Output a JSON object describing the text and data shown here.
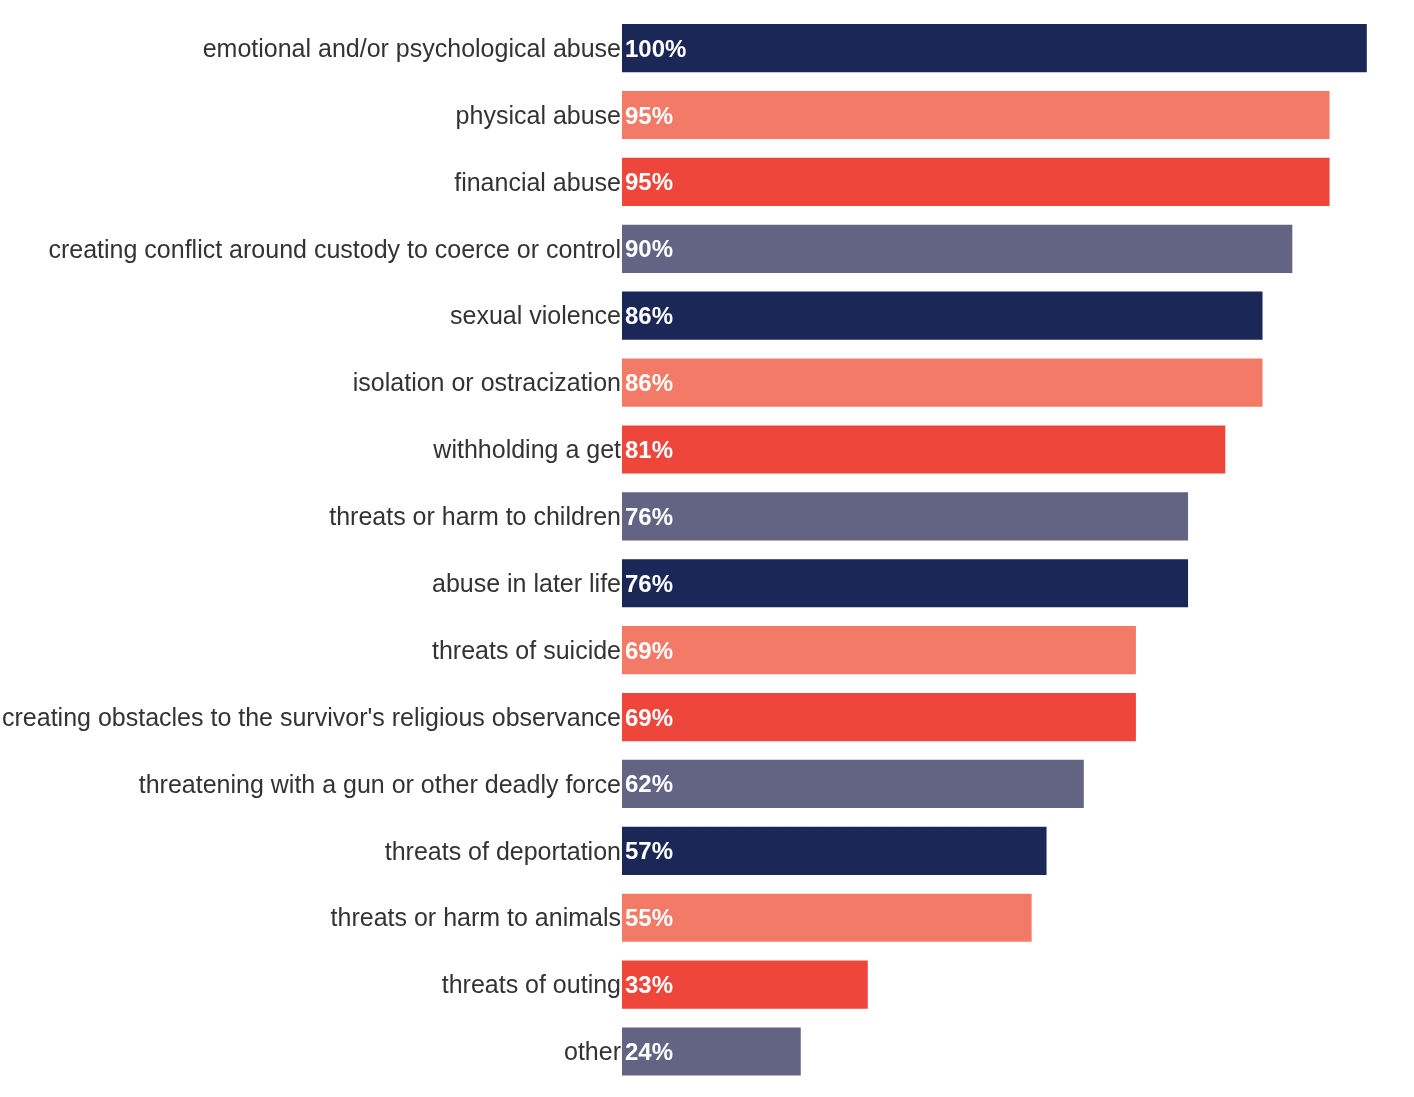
{
  "chart_data": {
    "type": "bar",
    "orientation": "horizontal",
    "categories": [
      "emotional and/or psychological abuse",
      "physical abuse",
      "financial abuse",
      "creating conflict around custody to coerce or control",
      "sexual violence",
      "isolation or ostracization",
      "withholding a get",
      "threats or harm to children",
      "abuse in later life",
      "threats of suicide",
      "creating obstacles to the survivor's religious observance",
      "threatening with a gun or other deadly force",
      "threats of deportation",
      "threats or harm to animals",
      "threats of outing",
      "other"
    ],
    "values": [
      100,
      95,
      95,
      90,
      86,
      86,
      81,
      76,
      76,
      69,
      69,
      62,
      57,
      55,
      33,
      24
    ],
    "value_labels": [
      "100%",
      "95%",
      "95%",
      "90%",
      "86%",
      "86%",
      "81%",
      "76%",
      "76%",
      "69%",
      "69%",
      "62%",
      "57%",
      "55%",
      "33%",
      "24%"
    ],
    "colors": [
      "#1a2757",
      "#f27a66",
      "#ef463b",
      "#636384",
      "#1a2757",
      "#f27a66",
      "#ef463b",
      "#636384",
      "#1a2757",
      "#f27a66",
      "#ef463b",
      "#636384",
      "#1a2757",
      "#f27a66",
      "#ef463b",
      "#636384"
    ],
    "grid": false,
    "legend": false
  }
}
